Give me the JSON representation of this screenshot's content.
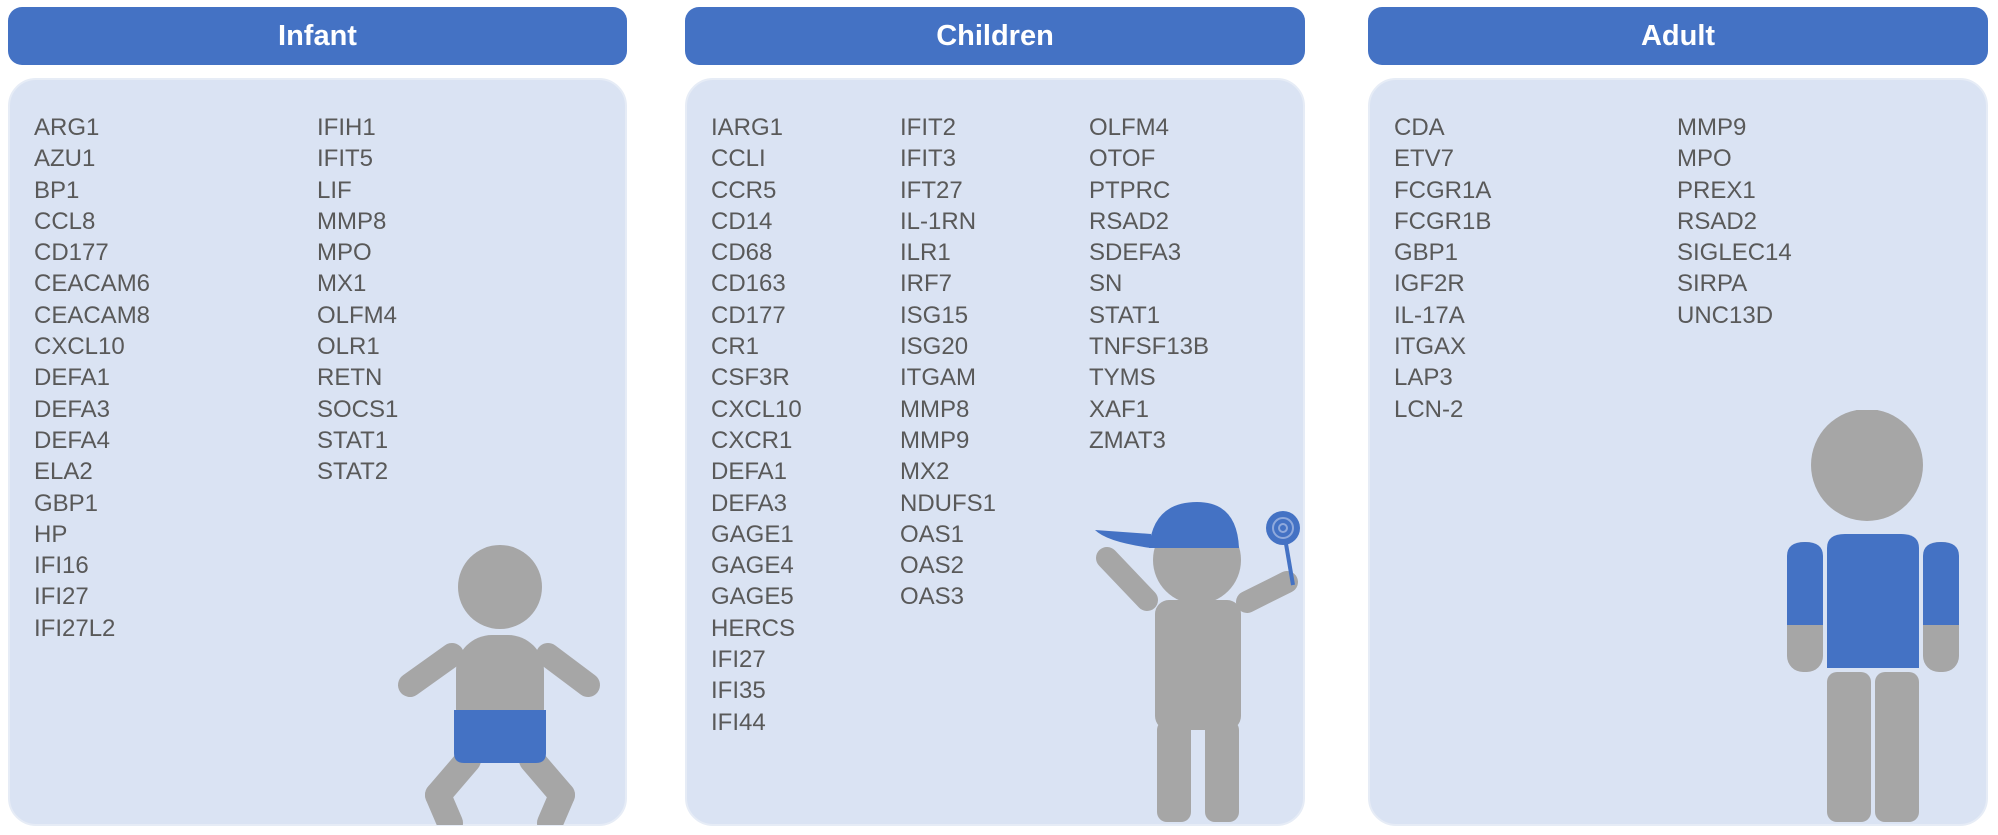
{
  "colors": {
    "header": "#4472c4",
    "panel": "#dae3f3",
    "figure_gray": "#a6a6a6",
    "accent_blue": "#4472c4",
    "text": "#595959"
  },
  "groups": [
    {
      "title": "Infant",
      "figure": "baby-icon",
      "columns": [
        [
          "ARG1",
          "AZU1",
          "BP1",
          "CCL8",
          "CD177",
          "CEACAM6",
          "CEACAM8",
          "CXCL10",
          "DEFA1",
          "DEFA3",
          "DEFA4",
          "ELA2",
          "GBP1",
          "HP",
          "IFI16",
          "IFI27",
          "IFI27L2"
        ],
        [
          "IFIH1",
          "IFIT5",
          "LIF",
          "MMP8",
          "MPO",
          "MX1",
          "OLFM4",
          "OLR1",
          "RETN",
          "SOCS1",
          "STAT1",
          "STAT2"
        ]
      ]
    },
    {
      "title": "Children",
      "figure": "child-icon",
      "columns": [
        [
          "IARG1",
          "CCLI",
          "CCR5",
          "CD14",
          "CD68",
          "CD163",
          "CD177",
          "CR1",
          "CSF3R",
          "CXCL10",
          "CXCR1",
          "DEFA1",
          "DEFA3",
          "GAGE1",
          "GAGE4",
          "GAGE5",
          "HERCS",
          "IFI27",
          "IFI35",
          "IFI44"
        ],
        [
          "IFIT2",
          "IFIT3",
          "IFT27",
          "IL-1RN",
          "ILR1",
          "IRF7",
          "ISG15",
          "ISG20",
          "ITGAM",
          "MMP8",
          "MMP9",
          "MX2",
          "NDUFS1",
          "OAS1",
          "OAS2",
          "OAS3"
        ],
        [
          "OLFM4",
          "OTOF",
          "PTPRC",
          "RSAD2",
          "SDEFA3",
          "SN",
          "STAT1",
          "TNFSF13B",
          "TYMS",
          "XAF1",
          "ZMAT3"
        ]
      ]
    },
    {
      "title": "Adult",
      "figure": "adult-icon",
      "columns": [
        [
          "CDA",
          "ETV7",
          "FCGR1A",
          "FCGR1B",
          "GBP1",
          "IGF2R",
          "IL-17A",
          "ITGAX",
          "LAP3",
          "LCN-2"
        ],
        [
          "MMP9",
          "MPO",
          "PREX1",
          "RSAD2",
          "SIGLEC14",
          "SIRPA",
          "UNC13D"
        ]
      ]
    }
  ]
}
